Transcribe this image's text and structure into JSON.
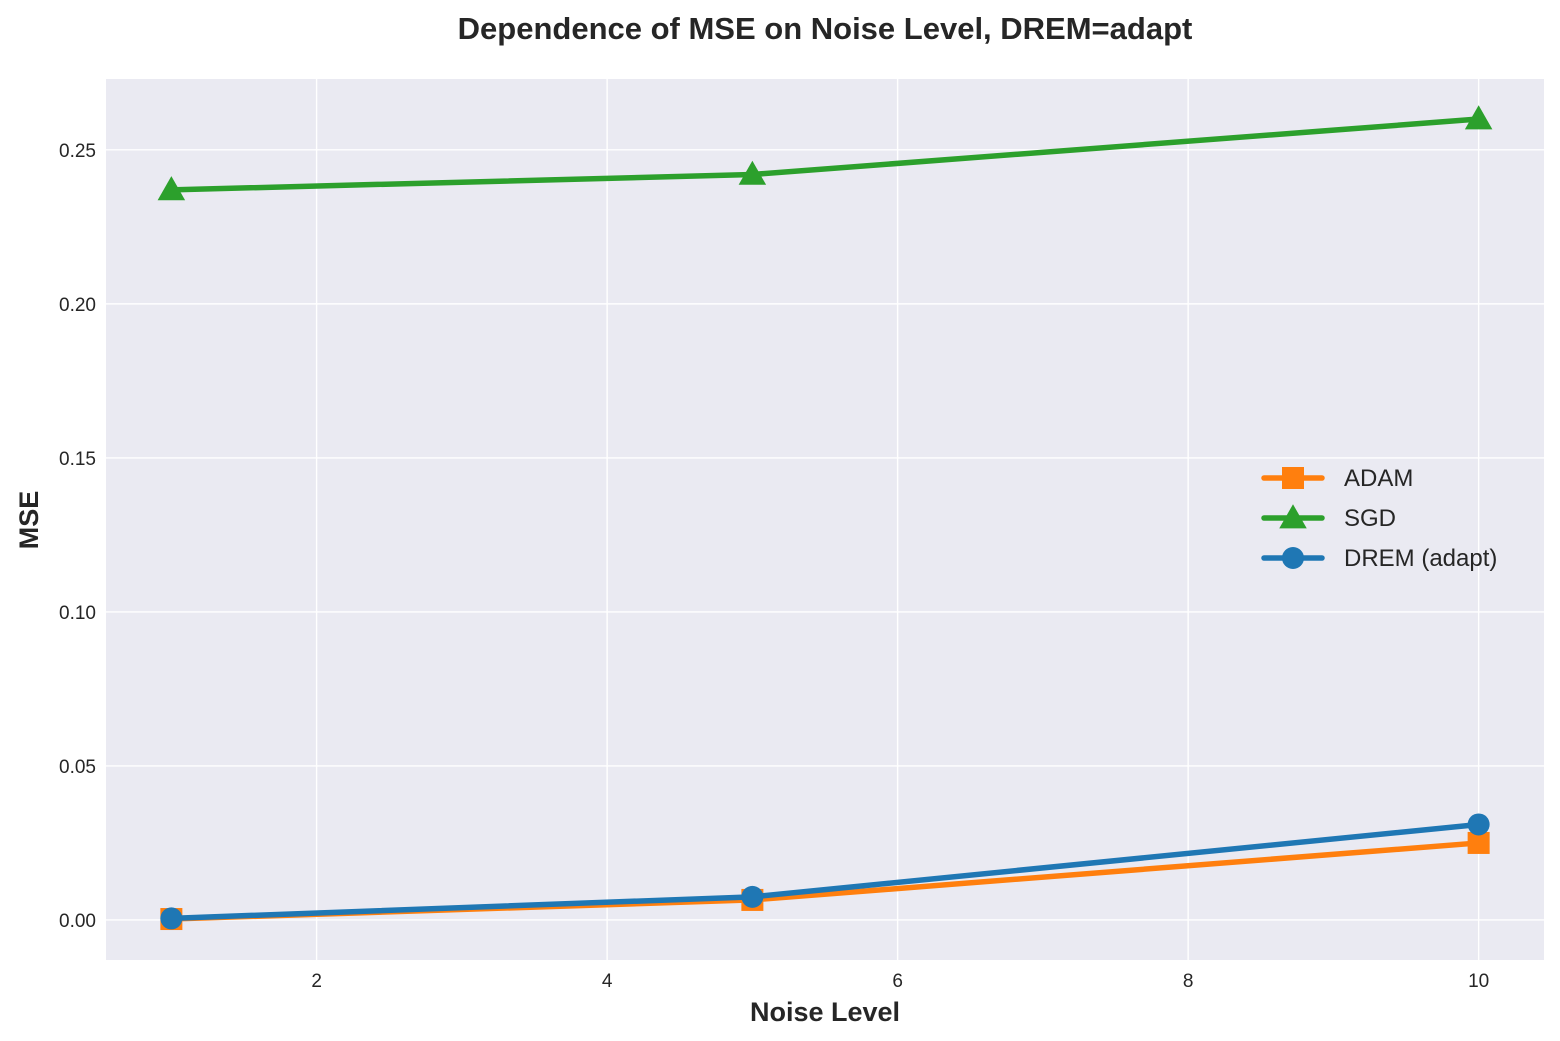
{
  "chart_data": {
    "type": "line",
    "title": "Dependence of MSE on Noise Level, DREM=adapt",
    "xlabel": "Noise Level",
    "ylabel": "MSE",
    "xlim": [
      0.55,
      10.45
    ],
    "ylim": [
      -0.013,
      0.273
    ],
    "xticks": [
      2,
      4,
      6,
      8,
      10
    ],
    "xtick_labels": [
      "2",
      "4",
      "6",
      "8",
      "10"
    ],
    "yticks": [
      0.0,
      0.05,
      0.1,
      0.15,
      0.2,
      0.25
    ],
    "ytick_labels": [
      "0.00",
      "0.05",
      "0.10",
      "0.15",
      "0.20",
      "0.25"
    ],
    "grid": true,
    "legend_position": "center-right",
    "x": [
      1,
      5,
      10
    ],
    "series": [
      {
        "name": "ADAM",
        "values": [
          0.0003,
          0.0065,
          0.025
        ],
        "color": "#ff7f0e",
        "marker": "square"
      },
      {
        "name": "SGD",
        "values": [
          0.237,
          0.242,
          0.26
        ],
        "color": "#2ca02c",
        "marker": "triangle"
      },
      {
        "name": "DREM (adapt)",
        "values": [
          0.0005,
          0.0075,
          0.031
        ],
        "color": "#1f77b4",
        "marker": "circle"
      }
    ]
  }
}
